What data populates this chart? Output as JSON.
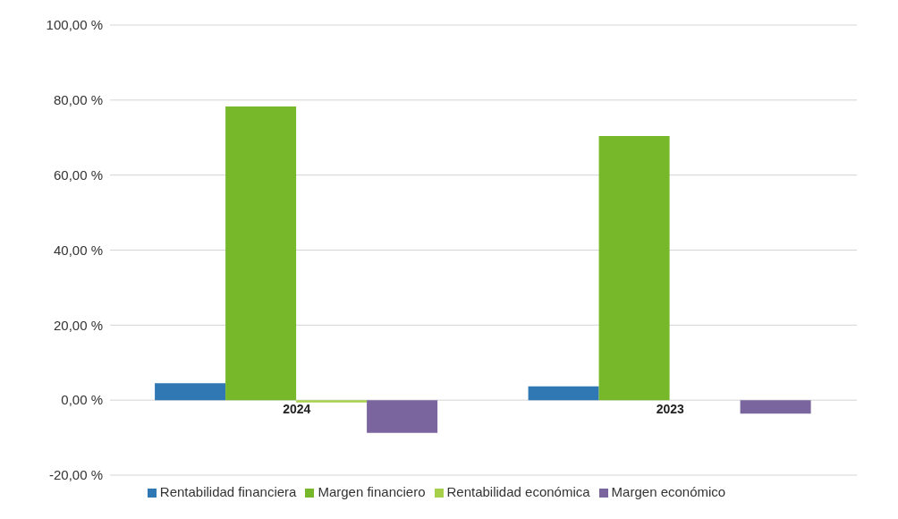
{
  "chart_data": {
    "type": "bar",
    "categories": [
      "2024",
      "2023"
    ],
    "series": [
      {
        "name": "Rentabilidad financiera",
        "color": "#2f78b4",
        "values": [
          4.5,
          3.7
        ]
      },
      {
        "name": "Margen financiero",
        "color": "#76b82a",
        "values": [
          78.3,
          70.4
        ]
      },
      {
        "name": "Rentabilidad económica",
        "color": "#a6cf4a",
        "values": [
          -0.6,
          null
        ]
      },
      {
        "name": "Margen económico",
        "color": "#7b659f",
        "values": [
          -8.7,
          -3.6
        ]
      }
    ],
    "ylim": [
      -20,
      100
    ],
    "yticks": [
      {
        "value": -20,
        "label": "-20,00 %"
      },
      {
        "value": 0,
        "label": "0,00 %"
      },
      {
        "value": 20,
        "label": "20,00 %"
      },
      {
        "value": 40,
        "label": "40,00 %"
      },
      {
        "value": 60,
        "label": "60,00 %"
      },
      {
        "value": 80,
        "label": "80,00 %"
      },
      {
        "value": 100,
        "label": "100,00 %"
      }
    ],
    "grid": "y",
    "legend": "bottom"
  }
}
